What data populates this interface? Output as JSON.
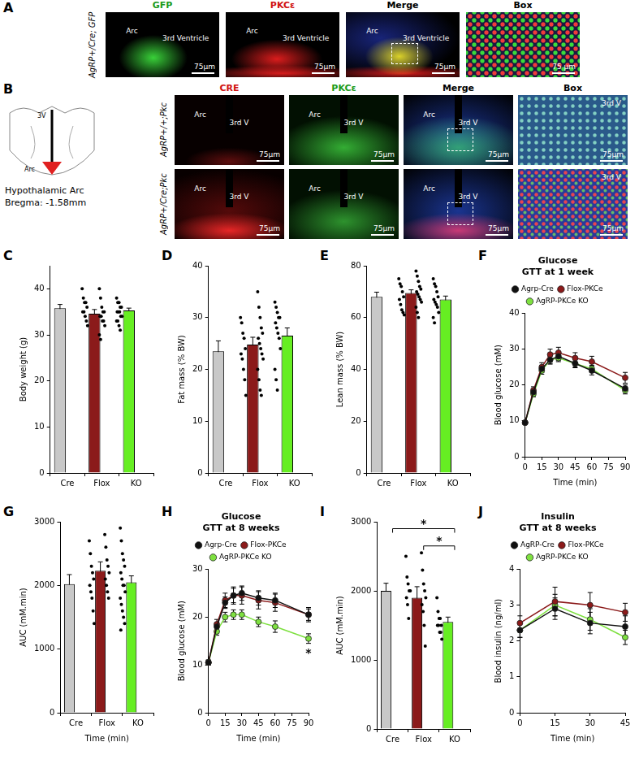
{
  "panel_a": {
    "letter": "A",
    "row_label": "AgRP+/Cre; GFP",
    "images": [
      {
        "title": "GFP",
        "labels": [
          "Arc",
          "3rd Ventricle"
        ],
        "scale_bar": "75µm"
      },
      {
        "title": "PKCε",
        "labels": [
          "Arc",
          "3rd Ventricle"
        ],
        "scale_bar": "75µm"
      },
      {
        "title": "Merge",
        "labels": [
          "Arc",
          "3rd Ventricle"
        ],
        "scale_bar": "75µm"
      },
      {
        "title": "Box",
        "labels": [],
        "scale_bar": "75 µm"
      }
    ]
  },
  "panel_b": {
    "letter": "B",
    "schematic": {
      "labels": [
        "3V",
        "Arc"
      ],
      "caption": [
        "Hypothalamic Arc",
        "Bregma: -1.58mm"
      ]
    },
    "columns": [
      "CRE",
      "PKCε",
      "Merge",
      "Box"
    ],
    "rows": [
      {
        "label": "AgRP+/+;Pkc",
        "images": [
          {
            "labels": [
              "Arc",
              "3rd V"
            ],
            "scale_bar": "75µm"
          },
          {
            "labels": [
              "Arc",
              "3rd V"
            ],
            "scale_bar": "75µm"
          },
          {
            "labels": [
              "Arc",
              "3rd V"
            ],
            "scale_bar": "75µm"
          },
          {
            "labels": [
              "3rd V"
            ],
            "scale_bar": "75µm"
          }
        ]
      },
      {
        "label": "AgRP+/Cre;Pkc",
        "images": [
          {
            "labels": [
              "Arc",
              "3rd V"
            ],
            "scale_bar": "75µm"
          },
          {
            "labels": [
              "Arc",
              "3rd V"
            ],
            "scale_bar": "75µm"
          },
          {
            "labels": [
              "Arc",
              "3rd V"
            ],
            "scale_bar": "75µm"
          },
          {
            "labels": [
              "3rd V"
            ],
            "scale_bar": "75µm"
          }
        ]
      }
    ]
  },
  "chart_data": [
    {
      "panel": "C",
      "type": "bar",
      "y_label": "Body weight (g)",
      "categories": [
        "Cre",
        "Flox",
        "KO"
      ],
      "values": [
        35.8,
        34.6,
        35.3
      ],
      "errors": [
        0.8,
        0.9,
        0.5
      ],
      "colors": [
        "#c8c8c8",
        "#8b1a1a",
        "#66ee22"
      ],
      "points": [
        [
          40,
          38,
          37,
          37,
          36,
          35,
          35,
          34,
          33,
          32
        ],
        [
          40,
          38,
          36,
          35,
          35,
          34,
          34,
          33,
          33,
          32,
          30,
          29
        ],
        [
          38,
          37,
          37,
          36,
          36,
          35,
          35,
          35,
          34,
          34,
          33,
          33,
          32,
          31
        ]
      ],
      "ylim": [
        0,
        45
      ],
      "yticks": [
        0,
        10,
        20,
        30,
        40
      ],
      "grid": false
    },
    {
      "panel": "D",
      "type": "bar",
      "y_label": "Fat mass (% BW)",
      "categories": [
        "Cre",
        "Flox",
        "KO"
      ],
      "values": [
        23.5,
        24.8,
        26.5
      ],
      "errors": [
        2,
        1.4,
        1.5
      ],
      "colors": [
        "#c8c8c8",
        "#8b1a1a",
        "#66ee22"
      ],
      "points": [
        [
          30,
          29,
          27,
          26,
          24,
          23,
          22,
          20,
          18,
          15
        ],
        [
          35,
          32,
          30,
          28,
          27,
          26,
          25,
          24,
          23,
          22,
          20,
          18,
          16,
          15
        ],
        [
          33,
          32,
          31,
          30,
          30,
          29,
          28,
          27,
          26,
          24,
          20,
          18,
          16
        ]
      ],
      "ylim": [
        0,
        40
      ],
      "yticks": [
        0,
        10,
        20,
        30,
        40
      ],
      "grid": false
    },
    {
      "panel": "E",
      "type": "bar",
      "y_label": "Lean mass (% BW)",
      "categories": [
        "Cre",
        "Flox",
        "KO"
      ],
      "values": [
        68,
        69.5,
        67
      ],
      "errors": [
        1.8,
        1.2,
        1.3
      ],
      "colors": [
        "#c8c8c8",
        "#8b1a1a",
        "#66ee22"
      ],
      "points": [
        [
          75,
          73,
          72,
          70,
          68,
          67,
          65,
          63,
          62,
          61
        ],
        [
          78,
          76,
          74,
          72,
          71,
          70,
          69,
          68,
          67,
          66,
          64,
          62,
          60
        ],
        [
          75,
          73,
          72,
          70,
          68,
          67,
          66,
          65,
          64,
          62,
          60,
          58
        ]
      ],
      "ylim": [
        0,
        80
      ],
      "yticks": [
        0,
        20,
        40,
        60,
        80
      ],
      "grid": false
    },
    {
      "panel": "F",
      "type": "line",
      "title": [
        "Glucose",
        "GTT at 1 week"
      ],
      "x_label": "Time (min)",
      "y_label": "Blood glucose (mM)",
      "x": [
        0,
        7.5,
        15,
        22.5,
        30,
        45,
        60,
        90
      ],
      "series": [
        {
          "name": "Agrp-Cre",
          "color": "#111111",
          "values": [
            9.5,
            18,
            24.5,
            27,
            28,
            26,
            24,
            19
          ],
          "errors": [
            0.4,
            0.8,
            1,
            1.2,
            1.2,
            1.2,
            1.2,
            1
          ]
        },
        {
          "name": "Flox-PKCe",
          "color": "#8b1a1a",
          "values": [
            9.5,
            18.5,
            25,
            28.5,
            29,
            27.5,
            26.5,
            22
          ],
          "errors": [
            0.4,
            1,
            1.2,
            1.5,
            1.5,
            1.5,
            1.5,
            1.5
          ]
        },
        {
          "name": "AgRP-PKCe KO",
          "color": "#7ee040",
          "values": [
            9.5,
            17.5,
            24,
            27,
            27.5,
            26,
            24.5,
            18.5
          ],
          "errors": [
            0.4,
            0.8,
            1,
            1,
            1,
            1,
            1,
            1
          ]
        }
      ],
      "xlim": [
        0,
        90
      ],
      "xticks": [
        0,
        15,
        30,
        45,
        60,
        75,
        90
      ],
      "ylim": [
        0,
        40
      ],
      "yticks": [
        0,
        10,
        20,
        30,
        40
      ],
      "legend": "top",
      "marker": "circle",
      "grid": false
    },
    {
      "panel": "G",
      "type": "bar",
      "x_label": "Time (min)",
      "y_label": "AUC (mM.min)",
      "categories": [
        "Cre",
        "Flox",
        "KO"
      ],
      "values": [
        2020,
        2230,
        2050
      ],
      "errors": [
        150,
        140,
        100
      ],
      "colors": [
        "#c8c8c8",
        "#8b1a1a",
        "#66ee22"
      ],
      "points": [
        [
          2700,
          2500,
          2300,
          2200,
          2100,
          2000,
          1900,
          1800,
          1600,
          1400
        ],
        [
          2800,
          2600,
          2400,
          2300,
          2200,
          2100,
          2000,
          1900,
          1800
        ],
        [
          2900,
          2700,
          2500,
          2400,
          2300,
          2200,
          2100,
          2000,
          2000,
          1900,
          1800,
          1700,
          1600,
          1500,
          1400,
          1300
        ]
      ],
      "ylim": [
        0,
        3000
      ],
      "yticks": [
        0,
        1000,
        2000,
        3000
      ],
      "grid": false
    },
    {
      "panel": "H",
      "type": "line",
      "title": [
        "Glucose",
        "GTT at 8 weeks"
      ],
      "x_label": "Time (min)",
      "y_label": "Blood glucose (mM)",
      "x": [
        0,
        7.5,
        15,
        22.5,
        30,
        45,
        60,
        90
      ],
      "series": [
        {
          "name": "Agrp-Cre",
          "color": "#111111",
          "values": [
            10.5,
            18,
            23,
            24.5,
            25,
            24,
            23.5,
            20.5
          ],
          "errors": [
            0.5,
            0.8,
            1.2,
            1.5,
            1.5,
            1.5,
            1.5,
            1.2
          ]
        },
        {
          "name": "Flox-PKCe",
          "color": "#8b1a1a",
          "values": [
            10.5,
            18.5,
            23.5,
            24.5,
            24.5,
            23.5,
            23,
            20.5
          ],
          "errors": [
            0.5,
            1,
            1.5,
            1.8,
            1.8,
            1.8,
            1.8,
            1.5
          ]
        },
        {
          "name": "AgRP-PKCe KO",
          "color": "#7ee040",
          "values": [
            10.5,
            17,
            20,
            20.5,
            20.5,
            19,
            18,
            15.5
          ],
          "errors": [
            0.5,
            0.8,
            1,
            1,
            1,
            1,
            1.2,
            1
          ]
        }
      ],
      "annotations": [
        {
          "x": 90,
          "y": 13.5,
          "text": "*"
        }
      ],
      "xlim": [
        0,
        90
      ],
      "xticks": [
        0,
        15,
        30,
        45,
        60,
        75,
        90
      ],
      "ylim": [
        0,
        30
      ],
      "yticks": [
        0,
        10,
        20,
        30
      ],
      "legend": "top",
      "marker": "circle",
      "grid": false
    },
    {
      "panel": "I",
      "type": "bar",
      "y_label": "AUC (mM.min)",
      "categories": [
        "Cre",
        "Flox",
        "KO"
      ],
      "values": [
        2000,
        1900,
        1550
      ],
      "errors": [
        110,
        160,
        70
      ],
      "colors": [
        "#c8c8c8",
        "#8b1a1a",
        "#66ee22"
      ],
      "points": [
        [
          2500,
          2200,
          2100,
          2000,
          2000,
          1900,
          1800,
          1600
        ],
        [
          2550,
          2300,
          2100,
          2000,
          1900,
          1800,
          1700,
          1500,
          1200
        ],
        [
          1900,
          1700,
          1600,
          1600,
          1500,
          1500,
          1500,
          1400,
          1400,
          1300
        ]
      ],
      "brackets": [
        {
          "from": "Cre",
          "to": "KO",
          "y": 2900,
          "text": "*"
        },
        {
          "from": "Flox",
          "to": "KO",
          "y": 2650,
          "text": "*"
        }
      ],
      "ylim": [
        0,
        3000
      ],
      "yticks": [
        0,
        1000,
        2000,
        3000
      ],
      "grid": false
    },
    {
      "panel": "J",
      "type": "line",
      "title": [
        "Insulin",
        "GTT at 8 weeks"
      ],
      "x_label": "Time (min)",
      "y_label": "Blood insulin (ng/ml)",
      "x": [
        0,
        15,
        30,
        45
      ],
      "series": [
        {
          "name": "AgRP-Cre",
          "color": "#111111",
          "values": [
            2.3,
            2.9,
            2.5,
            2.4
          ],
          "errors": [
            0.2,
            0.3,
            0.3,
            0.3
          ]
        },
        {
          "name": "Flox-PKCe",
          "color": "#8b1a1a",
          "values": [
            2.5,
            3.1,
            3.0,
            2.8
          ],
          "errors": [
            0.2,
            0.4,
            0.35,
            0.25
          ]
        },
        {
          "name": "AgRP-PKCe KO",
          "color": "#7ee040",
          "values": [
            2.3,
            3.0,
            2.6,
            2.1
          ],
          "errors": [
            0.2,
            0.3,
            0.3,
            0.2
          ]
        }
      ],
      "xlim": [
        0,
        45
      ],
      "xticks": [
        0,
        15,
        30,
        45
      ],
      "ylim": [
        0,
        4
      ],
      "yticks": [
        0,
        1,
        2,
        3,
        4
      ],
      "legend": "top",
      "marker": "circle",
      "grid": false
    }
  ]
}
